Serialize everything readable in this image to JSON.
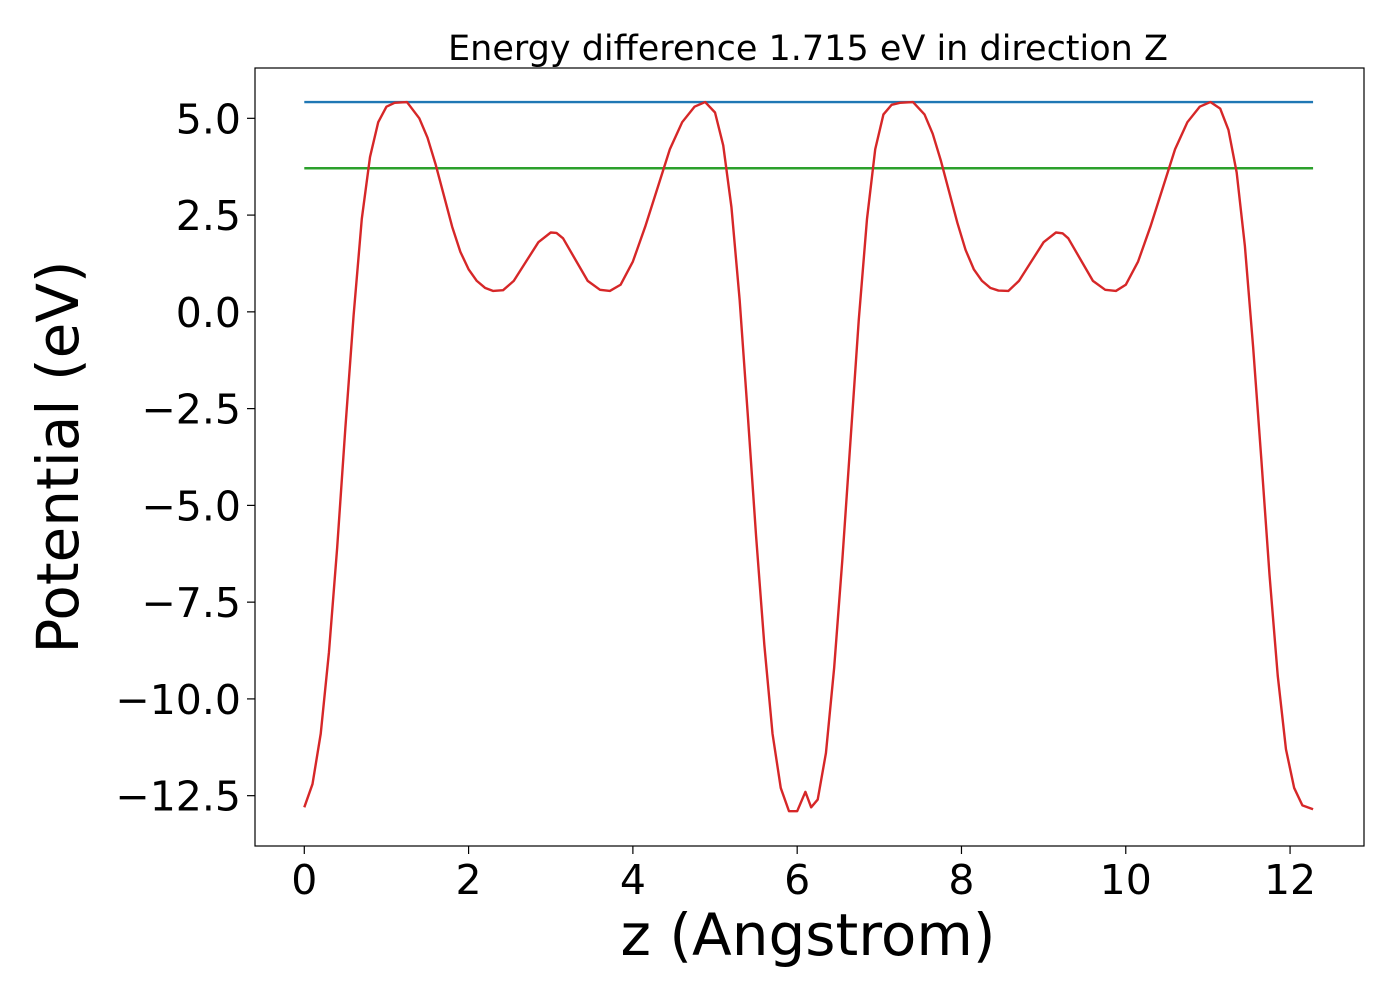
{
  "chart_data": {
    "type": "line",
    "title": "Energy difference 1.715 eV in direction Z",
    "xlabel": "z (Angstrom)",
    "ylabel": "Potential (eV)",
    "xlim": [
      -0.6,
      12.9
    ],
    "ylim": [
      -13.8,
      6.3
    ],
    "xticks": [
      {
        "value": 0,
        "label": "0"
      },
      {
        "value": 2,
        "label": "2"
      },
      {
        "value": 4,
        "label": "4"
      },
      {
        "value": 6,
        "label": "6"
      },
      {
        "value": 8,
        "label": "8"
      },
      {
        "value": 10,
        "label": "10"
      },
      {
        "value": 12,
        "label": "12"
      }
    ],
    "yticks": [
      {
        "value": 5.0,
        "label": "5.0"
      },
      {
        "value": 2.5,
        "label": "2.5"
      },
      {
        "value": 0.0,
        "label": "0.0"
      },
      {
        "value": -2.5,
        "label": "−2.5"
      },
      {
        "value": -5.0,
        "label": "−5.0"
      },
      {
        "value": -7.5,
        "label": "−7.5"
      },
      {
        "value": -10.0,
        "label": "−10.0"
      },
      {
        "value": -12.5,
        "label": "−12.5"
      }
    ],
    "grid": false,
    "series": [
      {
        "color": "#1f77b4",
        "x": [
          0.0,
          12.28
        ],
        "y": [
          5.42,
          5.42
        ]
      },
      {
        "color": "#2ca02c",
        "x": [
          0.0,
          12.28
        ],
        "y": [
          3.71,
          3.71
        ]
      },
      {
        "color": "#d62728",
        "x": [
          0.0,
          0.1,
          0.2,
          0.3,
          0.4,
          0.5,
          0.6,
          0.7,
          0.8,
          0.9,
          1.0,
          1.1,
          1.25,
          1.4,
          1.5,
          1.6,
          1.7,
          1.8,
          1.9,
          2.0,
          2.1,
          2.2,
          2.3,
          2.42,
          2.55,
          2.7,
          2.85,
          3.0,
          3.07,
          3.15,
          3.3,
          3.45,
          3.6,
          3.72,
          3.85,
          4.0,
          4.15,
          4.3,
          4.45,
          4.6,
          4.75,
          4.88,
          5.0,
          5.1,
          5.2,
          5.3,
          5.4,
          5.5,
          5.6,
          5.7,
          5.8,
          5.9,
          6.0,
          6.1,
          6.17,
          6.25,
          6.35,
          6.45,
          6.55,
          6.65,
          6.75,
          6.85,
          6.95,
          7.05,
          7.15,
          7.25,
          7.41,
          7.55,
          7.65,
          7.75,
          7.85,
          7.95,
          8.05,
          8.15,
          8.25,
          8.35,
          8.45,
          8.57,
          8.7,
          8.85,
          9.0,
          9.15,
          9.23,
          9.3,
          9.45,
          9.6,
          9.75,
          9.88,
          10.0,
          10.15,
          10.3,
          10.45,
          10.6,
          10.75,
          10.9,
          11.03,
          11.15,
          11.25,
          11.35,
          11.45,
          11.55,
          11.65,
          11.75,
          11.85,
          11.95,
          12.05,
          12.15,
          12.28
        ],
        "y": [
          -12.8,
          -12.2,
          -10.9,
          -8.8,
          -6.1,
          -3.0,
          -0.1,
          2.4,
          4.0,
          4.9,
          5.3,
          5.4,
          5.42,
          5.0,
          4.5,
          3.8,
          3.0,
          2.2,
          1.55,
          1.1,
          0.8,
          0.62,
          0.54,
          0.56,
          0.8,
          1.3,
          1.8,
          2.05,
          2.04,
          1.9,
          1.35,
          0.8,
          0.57,
          0.54,
          0.7,
          1.3,
          2.2,
          3.2,
          4.2,
          4.9,
          5.3,
          5.42,
          5.15,
          4.3,
          2.7,
          0.3,
          -2.7,
          -5.8,
          -8.6,
          -10.9,
          -12.3,
          -12.9,
          -12.9,
          -12.4,
          -12.8,
          -12.6,
          -11.4,
          -9.2,
          -6.4,
          -3.3,
          -0.2,
          2.4,
          4.2,
          5.1,
          5.35,
          5.4,
          5.42,
          5.1,
          4.6,
          3.9,
          3.1,
          2.3,
          1.6,
          1.1,
          0.8,
          0.62,
          0.55,
          0.54,
          0.8,
          1.3,
          1.8,
          2.05,
          2.03,
          1.9,
          1.35,
          0.8,
          0.57,
          0.54,
          0.7,
          1.3,
          2.2,
          3.2,
          4.2,
          4.9,
          5.3,
          5.42,
          5.25,
          4.7,
          3.6,
          1.7,
          -0.9,
          -3.8,
          -6.8,
          -9.4,
          -11.3,
          -12.3,
          -12.75,
          -12.85
        ]
      }
    ]
  }
}
